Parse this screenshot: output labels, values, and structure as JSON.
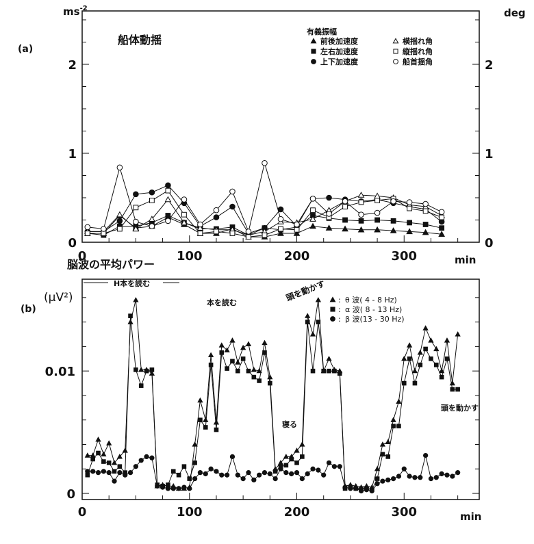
{
  "chart_data": [
    {
      "type": "line",
      "panel_label": "(a)",
      "title": "船体動揺",
      "xlabel": "min",
      "ylabel_left": "ms-2",
      "ylabel_right": "deg",
      "xlim": [
        0,
        370
      ],
      "ylim": [
        0,
        2.6
      ],
      "xticks": [
        0,
        100,
        200,
        300
      ],
      "yticks_left": [
        0,
        1,
        2
      ],
      "yticks_right": [
        0,
        1,
        2
      ],
      "legend_title": "有義振幅",
      "legend_position": "top-right",
      "x": [
        5,
        20,
        35,
        50,
        65,
        80,
        95,
        110,
        125,
        140,
        155,
        170,
        185,
        200,
        215,
        230,
        245,
        260,
        275,
        290,
        305,
        320,
        335
      ],
      "series": [
        {
          "name": "前後加速度",
          "marker": "filled-triangle",
          "axis": "left",
          "values": [
            0.1,
            0.1,
            0.3,
            0.16,
            0.18,
            0.28,
            0.2,
            0.1,
            0.1,
            0.15,
            0.06,
            0.06,
            0.1,
            0.1,
            0.18,
            0.16,
            0.15,
            0.14,
            0.14,
            0.13,
            0.12,
            0.11,
            0.09
          ]
        },
        {
          "name": "左右加速度",
          "marker": "filled-square",
          "axis": "left",
          "values": [
            0.1,
            0.08,
            0.18,
            0.18,
            0.22,
            0.3,
            0.22,
            0.15,
            0.15,
            0.17,
            0.08,
            0.16,
            0.14,
            0.17,
            0.3,
            0.27,
            0.25,
            0.24,
            0.25,
            0.24,
            0.22,
            0.2,
            0.16
          ]
        },
        {
          "name": "上下加速度",
          "marker": "filled-circle",
          "axis": "left",
          "values": [
            0.12,
            0.12,
            0.24,
            0.54,
            0.56,
            0.64,
            0.44,
            0.18,
            0.28,
            0.4,
            0.1,
            0.16,
            0.37,
            0.18,
            0.49,
            0.5,
            0.48,
            0.46,
            0.48,
            0.44,
            0.4,
            0.37,
            0.23
          ]
        },
        {
          "name": "横揺れ角",
          "marker": "open-triangle",
          "axis": "right",
          "values": [
            0.12,
            0.12,
            0.31,
            0.15,
            0.26,
            0.48,
            0.22,
            0.16,
            0.14,
            0.14,
            0.08,
            0.12,
            0.23,
            0.22,
            0.26,
            0.36,
            0.46,
            0.53,
            0.52,
            0.5,
            0.42,
            0.4,
            0.3
          ]
        },
        {
          "name": "縦揺れ角",
          "marker": "open-square",
          "axis": "right",
          "values": [
            0.1,
            0.1,
            0.15,
            0.39,
            0.47,
            0.58,
            0.31,
            0.1,
            0.12,
            0.1,
            0.06,
            0.08,
            0.15,
            0.14,
            0.36,
            0.28,
            0.4,
            0.45,
            0.47,
            0.49,
            0.38,
            0.35,
            0.28
          ]
        },
        {
          "name": "船首揺角",
          "marker": "open-circle",
          "axis": "right",
          "values": [
            0.17,
            0.15,
            0.84,
            0.23,
            0.18,
            0.24,
            0.48,
            0.2,
            0.36,
            0.57,
            0.12,
            0.89,
            0.26,
            0.2,
            0.49,
            0.32,
            0.46,
            0.31,
            0.33,
            0.46,
            0.45,
            0.43,
            0.34
          ]
        }
      ]
    },
    {
      "type": "line",
      "panel_label": "(b)",
      "title": "脳波の平均パワー",
      "xlabel": "min",
      "ylabel": "(μV²)",
      "xlim": [
        0,
        370
      ],
      "ylim": [
        -0.0005,
        0.0175
      ],
      "xticks": [
        0,
        100,
        200,
        300
      ],
      "yticks": [
        0,
        0.01
      ],
      "ytick_labels": [
        "0",
        "0.01"
      ],
      "legend_position": "top-right",
      "annotations": [
        "H本を読む",
        "本を読む",
        "頭を動かす",
        "寝る",
        "頭を動かす"
      ],
      "series": [
        {
          "name": "θ 波( 4 -   8 Hz)",
          "marker": "filled-triangle",
          "x": [
            5,
            10,
            15,
            20,
            25,
            30,
            35,
            40,
            45,
            50,
            55,
            60,
            65,
            70,
            75,
            80,
            85,
            90,
            95,
            100,
            105,
            110,
            115,
            120,
            125,
            130,
            135,
            140,
            145,
            150,
            155,
            160,
            165,
            170,
            175,
            180,
            185,
            190,
            195,
            200,
            205,
            210,
            215,
            220,
            225,
            230,
            235,
            240,
            245,
            250,
            255,
            260,
            265,
            270,
            275,
            280,
            285,
            290,
            295,
            300,
            305,
            310,
            315,
            320,
            325,
            330,
            335,
            340,
            345,
            350
          ],
          "values": [
            0.0031,
            0.0031,
            0.0044,
            0.0032,
            0.0041,
            0.0025,
            0.003,
            0.0035,
            0.014,
            0.0158,
            0.0101,
            0.0101,
            0.0098,
            0.0006,
            0.0007,
            0.0006,
            0.0006,
            0.0004,
            0.0004,
            0.0005,
            0.004,
            0.0076,
            0.006,
            0.0113,
            0.0058,
            0.0121,
            0.0117,
            0.0125,
            0.0107,
            0.0119,
            0.0122,
            0.0101,
            0.01,
            0.0123,
            0.0095,
            0.002,
            0.0025,
            0.003,
            0.003,
            0.0035,
            0.004,
            0.0145,
            0.013,
            0.0158,
            0.01,
            0.011,
            0.0101,
            0.01,
            0.0006,
            0.0007,
            0.0006,
            0.0005,
            0.0006,
            0.0005,
            0.002,
            0.004,
            0.0042,
            0.006,
            0.0075,
            0.011,
            0.0121,
            0.01,
            0.0115,
            0.0135,
            0.0125,
            0.0118,
            0.01,
            0.0125,
            0.009,
            0.013
          ]
        },
        {
          "name": "α 波(  8 - 13 Hz)",
          "marker": "filled-square",
          "x": [
            5,
            10,
            15,
            20,
            25,
            30,
            35,
            40,
            45,
            50,
            55,
            60,
            65,
            70,
            75,
            80,
            85,
            90,
            95,
            100,
            105,
            110,
            115,
            120,
            125,
            130,
            135,
            140,
            145,
            150,
            155,
            160,
            165,
            170,
            175,
            180,
            185,
            190,
            195,
            200,
            205,
            210,
            215,
            220,
            225,
            230,
            235,
            240,
            245,
            250,
            255,
            260,
            265,
            270,
            275,
            280,
            285,
            290,
            295,
            300,
            305,
            310,
            315,
            320,
            325,
            330,
            335,
            340,
            345,
            350
          ],
          "values": [
            0.0015,
            0.0028,
            0.0033,
            0.0026,
            0.0025,
            0.0018,
            0.0022,
            0.0017,
            0.0145,
            0.0101,
            0.0088,
            0.01,
            0.0101,
            0.0007,
            0.0006,
            0.0007,
            0.0018,
            0.0015,
            0.0022,
            0.0012,
            0.0025,
            0.006,
            0.0054,
            0.0105,
            0.0052,
            0.0115,
            0.0102,
            0.0108,
            0.01,
            0.011,
            0.01,
            0.0095,
            0.0092,
            0.0115,
            0.009,
            0.0018,
            0.0022,
            0.0023,
            0.0028,
            0.0025,
            0.003,
            0.014,
            0.01,
            0.014,
            0.01,
            0.01,
            0.01,
            0.0098,
            0.0004,
            0.0005,
            0.0004,
            0.0004,
            0.0004,
            0.0003,
            0.0012,
            0.0032,
            0.003,
            0.0055,
            0.0055,
            0.009,
            0.011,
            0.009,
            0.0105,
            0.0118,
            0.011,
            0.0105,
            0.0095,
            0.011,
            0.0085,
            0.0085
          ]
        },
        {
          "name": "β 波(13 - 30 Hz)",
          "marker": "filled-circle",
          "x": [
            5,
            10,
            15,
            20,
            25,
            30,
            35,
            40,
            45,
            50,
            55,
            60,
            65,
            70,
            75,
            80,
            85,
            90,
            95,
            100,
            105,
            110,
            115,
            120,
            125,
            130,
            135,
            140,
            145,
            150,
            155,
            160,
            165,
            170,
            175,
            180,
            185,
            190,
            195,
            200,
            205,
            210,
            215,
            220,
            225,
            230,
            235,
            240,
            245,
            250,
            255,
            260,
            265,
            270,
            275,
            280,
            285,
            290,
            295,
            300,
            305,
            310,
            315,
            320,
            325,
            330,
            335,
            340,
            345,
            350
          ],
          "values": [
            0.0018,
            0.0018,
            0.0017,
            0.0018,
            0.0017,
            0.001,
            0.0017,
            0.0015,
            0.0017,
            0.0022,
            0.0027,
            0.003,
            0.0029,
            0.0006,
            0.0005,
            0.0004,
            0.0004,
            0.0004,
            0.0005,
            0.0004,
            0.0012,
            0.0017,
            0.0016,
            0.002,
            0.0018,
            0.0015,
            0.0015,
            0.003,
            0.0015,
            0.0012,
            0.0017,
            0.0011,
            0.0015,
            0.0017,
            0.0016,
            0.0012,
            0.002,
            0.0017,
            0.0016,
            0.0017,
            0.0012,
            0.0016,
            0.002,
            0.0019,
            0.0015,
            0.0025,
            0.0022,
            0.0022,
            0.0005,
            0.0004,
            0.0004,
            0.0002,
            0.0003,
            0.0002,
            0.0008,
            0.001,
            0.0011,
            0.0012,
            0.0014,
            0.002,
            0.0014,
            0.0013,
            0.0013,
            0.0031,
            0.0012,
            0.0013,
            0.0016,
            0.0015,
            0.0014,
            0.0017
          ]
        }
      ]
    }
  ]
}
